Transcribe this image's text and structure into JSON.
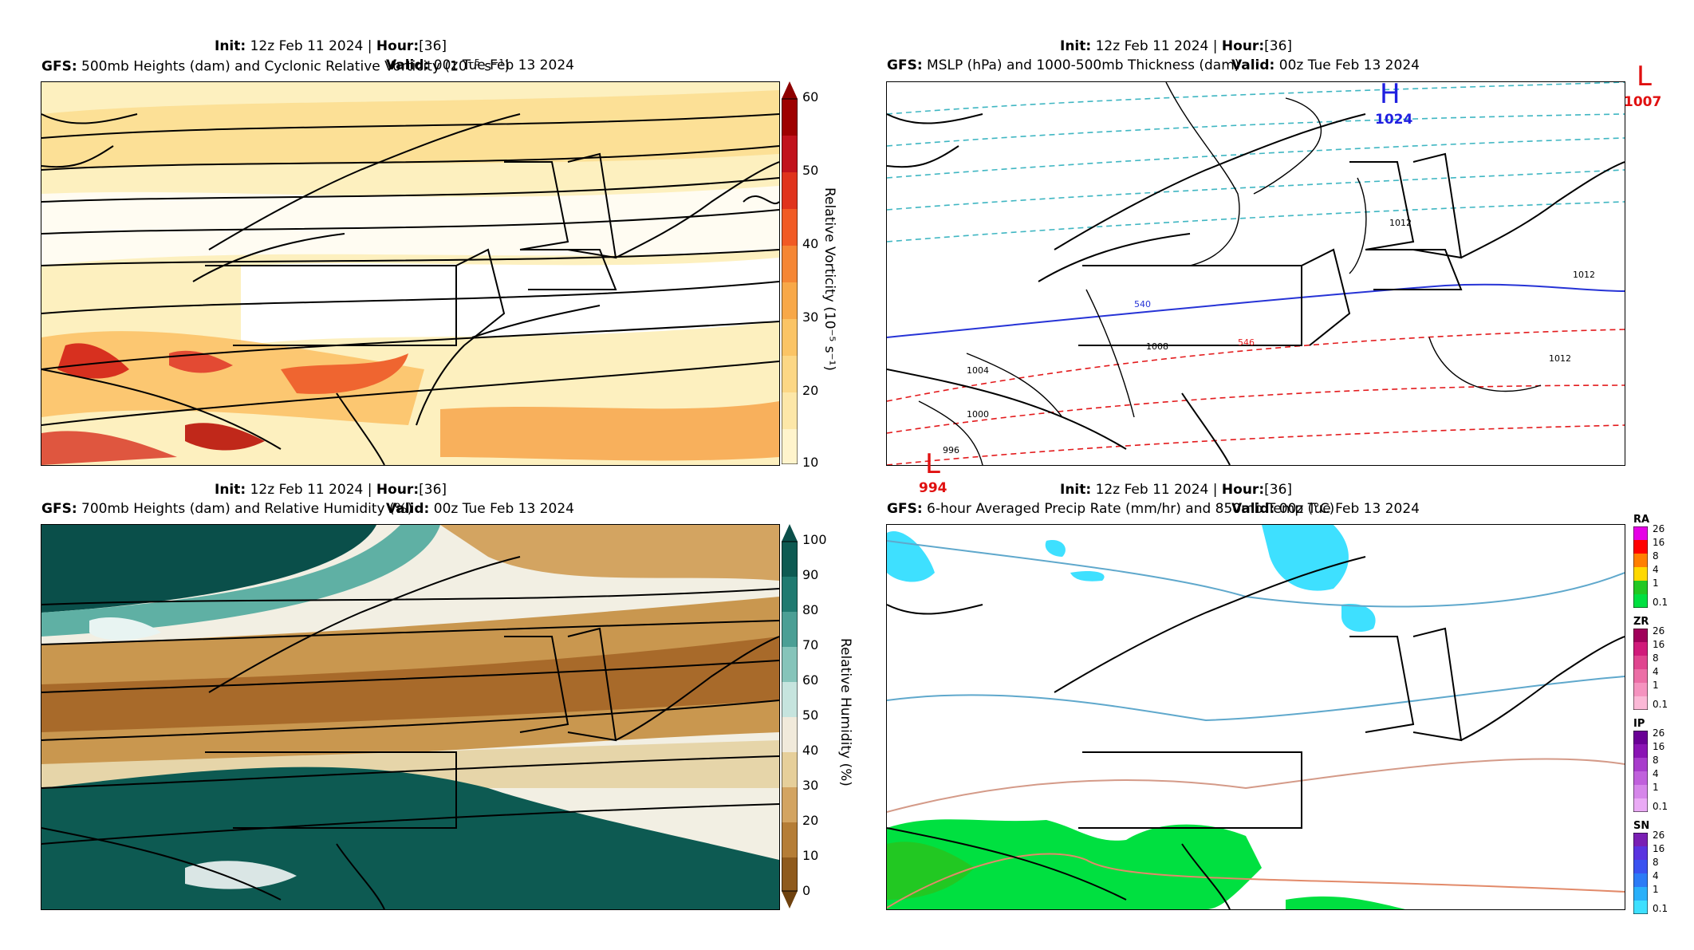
{
  "panels": [
    {
      "id": "vort",
      "init_label": "Init",
      "init_value": "12z Feb 11 2024",
      "hour_label": "Hour",
      "hour_value": "[36]",
      "valid_label": "Valid",
      "valid_value": "00z Tue Feb 13 2024",
      "model": "GFS",
      "title": "500mb Heights (dam) and Cyclonic Relative Vorticity (10",
      "title_sup": "−5",
      "title_tail": " s",
      "title_sup2": "−1",
      "title_end": ")",
      "colorbar_label": "Relative Vorticity (10⁻⁵ s⁻¹)",
      "colorbar_ticks": [
        "60",
        "50",
        "40",
        "30",
        "20",
        "10"
      ]
    },
    {
      "id": "mslp",
      "init_label": "Init",
      "init_value": "12z Feb 11 2024",
      "hour_label": "Hour",
      "hour_value": "[36]",
      "valid_label": "Valid",
      "valid_value": "00z Tue Feb 13 2024",
      "model": "GFS",
      "title": "MSLP (hPa) and 1000-500mb Thickness (dam)",
      "highs_lows": [
        {
          "letter": "H",
          "value": "1024",
          "color": "#1f1fe0"
        },
        {
          "letter": "L",
          "value": "1007",
          "color": "#e01010"
        },
        {
          "letter": "L",
          "value": "994",
          "color": "#e01010"
        }
      ],
      "isobar_labels": [
        "1012",
        "1012",
        "1012",
        "1008",
        "1004",
        "1000",
        "996"
      ],
      "thickness_labels": [
        "540",
        "546"
      ]
    },
    {
      "id": "rh",
      "init_label": "Init",
      "init_value": "12z Feb 11 2024",
      "hour_label": "Hour",
      "hour_value": "[36]",
      "valid_label": "Valid",
      "valid_value": "00z Tue Feb 13 2024",
      "model": "GFS",
      "title": "700mb Heights (dam) and Relative Humidity (%)",
      "colorbar_label": "Relative Humidity (%)",
      "colorbar_ticks": [
        "100",
        "90",
        "80",
        "70",
        "60",
        "50",
        "40",
        "30",
        "20",
        "10",
        "0"
      ]
    },
    {
      "id": "precip",
      "init_label": "Init",
      "init_value": "12z Feb 11 2024",
      "hour_label": "Hour",
      "hour_value": "[36]",
      "valid_label": "Valid",
      "valid_value": "00z Tue Feb 13 2024",
      "model": "GFS",
      "title": "6-hour Averaged Precip Rate (mm/hr) and 850mb Temp (°C)",
      "ptype_bars": [
        {
          "name": "RA",
          "ticks": [
            "26",
            "16",
            "8",
            "4",
            "1",
            "0.1"
          ],
          "colors": [
            "#e600e6",
            "#ff0000",
            "#ff7f00",
            "#ffd800",
            "#22c822",
            "#00e040"
          ]
        },
        {
          "name": "ZR",
          "ticks": [
            "26",
            "16",
            "8",
            "4",
            "1",
            "0.1"
          ],
          "colors": [
            "#a0005a",
            "#d01a7a",
            "#e0458f",
            "#ec6ea6",
            "#f593bf",
            "#fbb8d6"
          ]
        },
        {
          "name": "IP",
          "ticks": [
            "26",
            "16",
            "8",
            "4",
            "1",
            "0.1"
          ],
          "colors": [
            "#6a0096",
            "#8a14b4",
            "#a83ccc",
            "#c060dc",
            "#d686ea",
            "#eaaaf5"
          ]
        },
        {
          "name": "SN",
          "ticks": [
            "26",
            "16",
            "8",
            "4",
            "1",
            "0.1"
          ],
          "colors": [
            "#7a1fb4",
            "#5a34e0",
            "#3a52f0",
            "#2c7bf6",
            "#2ab0fa",
            "#3ee0ff"
          ]
        }
      ]
    }
  ]
}
